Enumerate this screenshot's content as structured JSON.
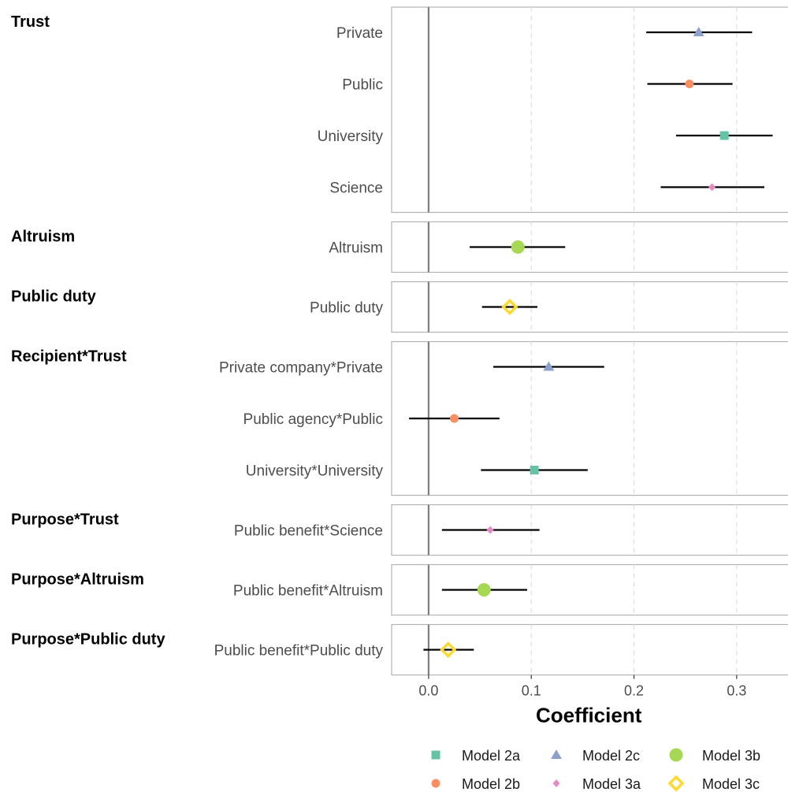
{
  "chart_data": {
    "type": "dot-and-whisker",
    "xlabel": "Coefficient",
    "xlim": [
      -0.036,
      0.35
    ],
    "x_ticks": [
      0.0,
      0.1,
      0.2,
      0.3
    ],
    "x_tick_labels": [
      "0.0",
      "0.1",
      "0.2",
      "0.3"
    ],
    "reference_line": 0,
    "grid": "vertical dashed",
    "legend_position": "bottom",
    "models": [
      {
        "name": "Model 2a",
        "shape": "square",
        "color": "#66c2a5"
      },
      {
        "name": "Model 2b",
        "shape": "circle",
        "color": "#fc8d62"
      },
      {
        "name": "Model 2c",
        "shape": "triangle",
        "color": "#8da0cb"
      },
      {
        "name": "Model 3a",
        "shape": "diamond",
        "color": "#e78ac3"
      },
      {
        "name": "Model 3b",
        "shape": "large-circle",
        "color": "#a6d854"
      },
      {
        "name": "Model 3c",
        "shape": "open-diamond",
        "color": "#ffd92f"
      }
    ],
    "legend_rows": [
      [
        "Model 2a",
        "Model 2c",
        "Model 3b"
      ],
      [
        "Model 2b",
        "Model 3a",
        "Model 3c"
      ]
    ],
    "facets": [
      {
        "title": "Trust",
        "terms": [
          {
            "label": "Private",
            "model": "Model 2c",
            "estimate": 0.263,
            "lower": 0.212,
            "upper": 0.315
          },
          {
            "label": "Public",
            "model": "Model 2b",
            "estimate": 0.254,
            "lower": 0.213,
            "upper": 0.296
          },
          {
            "label": "University",
            "model": "Model 2a",
            "estimate": 0.288,
            "lower": 0.241,
            "upper": 0.335
          },
          {
            "label": "Science",
            "model": "Model 3a",
            "estimate": 0.276,
            "lower": 0.226,
            "upper": 0.327
          }
        ]
      },
      {
        "title": "Altruism",
        "terms": [
          {
            "label": "Altruism",
            "model": "Model 3b",
            "estimate": 0.087,
            "lower": 0.04,
            "upper": 0.133
          }
        ]
      },
      {
        "title": "Public duty",
        "terms": [
          {
            "label": "Public duty",
            "model": "Model 3c",
            "estimate": 0.079,
            "lower": 0.052,
            "upper": 0.106
          }
        ]
      },
      {
        "title": "Recipient*Trust",
        "terms": [
          {
            "label": "Private company*Private",
            "model": "Model 2c",
            "estimate": 0.117,
            "lower": 0.063,
            "upper": 0.171
          },
          {
            "label": "Public agency*Public",
            "model": "Model 2b",
            "estimate": 0.025,
            "lower": -0.019,
            "upper": 0.069
          },
          {
            "label": "University*University",
            "model": "Model 2a",
            "estimate": 0.103,
            "lower": 0.051,
            "upper": 0.155
          }
        ]
      },
      {
        "title": "Purpose*Trust",
        "terms": [
          {
            "label": "Public benefit*Science",
            "model": "Model 3a",
            "estimate": 0.06,
            "lower": 0.013,
            "upper": 0.108
          }
        ]
      },
      {
        "title": "Purpose*Altruism",
        "terms": [
          {
            "label": "Public benefit*Altruism",
            "model": "Model 3b",
            "estimate": 0.054,
            "lower": 0.013,
            "upper": 0.096
          }
        ]
      },
      {
        "title": "Purpose*Public duty",
        "terms": [
          {
            "label": "Public benefit*Public duty",
            "model": "Model 3c",
            "estimate": 0.019,
            "lower": -0.005,
            "upper": 0.044
          }
        ]
      }
    ]
  }
}
